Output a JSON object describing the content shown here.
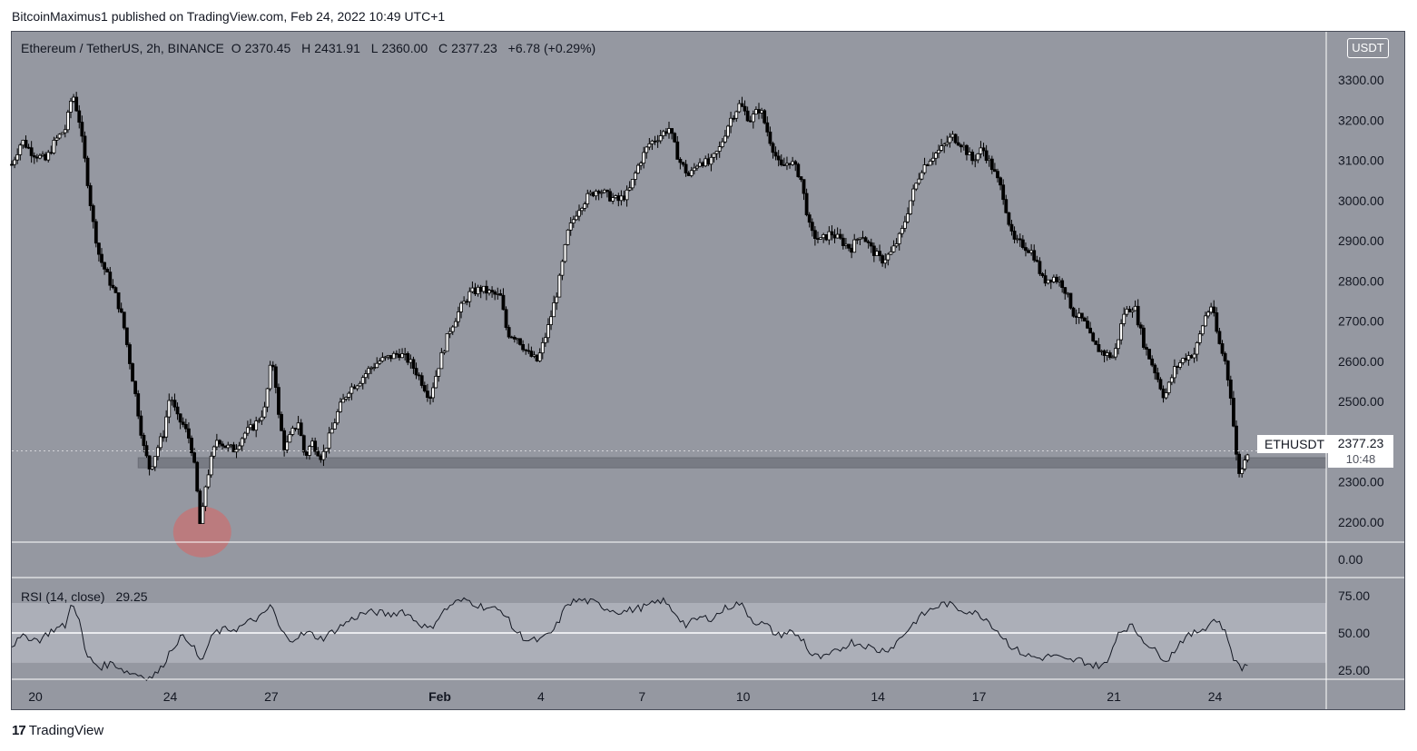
{
  "header": {
    "publisher_line": "BitcoinMaximus1 published on TradingView.com, Feb 24, 2022 10:49 UTC+1"
  },
  "symbol": {
    "name": "Ethereum / TetherUS, 2h, BINANCE",
    "open_label": "O",
    "open": "2370.45",
    "high_label": "H",
    "high": "2431.91",
    "low_label": "L",
    "low": "2360.00",
    "close_label": "C",
    "close": "2377.23",
    "change": "+6.78 (+0.29%)"
  },
  "unit_badge": "USDT",
  "last_price": {
    "ticker": "ETHUSDT",
    "price": "2377.23",
    "countdown": "10:48"
  },
  "rsi": {
    "label": "RSI (14, close)",
    "value": "29.25"
  },
  "footer": {
    "brand": "TradingView",
    "logo_glyph": "17"
  },
  "colors": {
    "background": "#9598a1",
    "candle": "#000000",
    "support_zone": "#6f727b",
    "highlight": "#d06b6b",
    "rsi_band": "#b2b5be",
    "rsi_line": "#131722"
  },
  "chart_data": [
    {
      "type": "candlestick",
      "symbol": "ETHUSDT",
      "ylim": [
        2150,
        3420
      ],
      "y_ticks": [
        2200,
        2300,
        2400,
        2500,
        2600,
        2700,
        2800,
        2900,
        3000,
        3100,
        3200,
        3300
      ],
      "y_tick_labels": [
        "2200.00",
        "2300.00",
        "2400.00",
        "2500.00",
        "2600.00",
        "2700.00",
        "2800.00",
        "2900.00",
        "3000.00",
        "3100.00",
        "3200.00",
        "3300.00"
      ],
      "extra_tick_label": "0.00",
      "x_tick_labels": [
        "20",
        "24",
        "27",
        "Feb",
        "4",
        "7",
        "10",
        "14",
        "17",
        "21",
        "24"
      ],
      "x_tick_days": [
        0,
        4,
        7,
        12,
        15,
        18,
        21,
        25,
        28,
        32,
        35
      ],
      "x_range_days": [
        -0.7,
        38.3
      ],
      "close_path": [
        [
          -0.7,
          3090
        ],
        [
          -0.4,
          3150
        ],
        [
          -0.1,
          3120
        ],
        [
          0.3,
          3100
        ],
        [
          0.6,
          3150
        ],
        [
          0.9,
          3180
        ],
        [
          1.1,
          3270
        ],
        [
          1.3,
          3200
        ],
        [
          1.5,
          3080
        ],
        [
          1.7,
          2950
        ],
        [
          1.9,
          2860
        ],
        [
          2.2,
          2800
        ],
        [
          2.4,
          2760
        ],
        [
          2.6,
          2700
        ],
        [
          2.8,
          2600
        ],
        [
          3.0,
          2500
        ],
        [
          3.2,
          2390
        ],
        [
          3.4,
          2330
        ],
        [
          3.6,
          2380
        ],
        [
          3.8,
          2420
        ],
        [
          4.0,
          2520
        ],
        [
          4.2,
          2460
        ],
        [
          4.4,
          2440
        ],
        [
          4.6,
          2400
        ],
        [
          4.75,
          2320
        ],
        [
          4.9,
          2180
        ],
        [
          5.05,
          2290
        ],
        [
          5.2,
          2350
        ],
        [
          5.4,
          2410
        ],
        [
          5.6,
          2390
        ],
        [
          5.9,
          2380
        ],
        [
          6.2,
          2420
        ],
        [
          6.5,
          2440
        ],
        [
          6.8,
          2480
        ],
        [
          7.0,
          2600
        ],
        [
          7.1,
          2580
        ],
        [
          7.2,
          2470
        ],
        [
          7.4,
          2380
        ],
        [
          7.6,
          2420
        ],
        [
          7.8,
          2450
        ],
        [
          8.0,
          2360
        ],
        [
          8.2,
          2400
        ],
        [
          8.5,
          2360
        ],
        [
          8.8,
          2430
        ],
        [
          9.0,
          2480
        ],
        [
          9.3,
          2530
        ],
        [
          9.6,
          2550
        ],
        [
          9.9,
          2580
        ],
        [
          10.2,
          2600
        ],
        [
          10.5,
          2610
        ],
        [
          10.8,
          2620
        ],
        [
          11.1,
          2600
        ],
        [
          11.4,
          2560
        ],
        [
          11.7,
          2510
        ],
        [
          12.0,
          2600
        ],
        [
          12.3,
          2680
        ],
        [
          12.6,
          2730
        ],
        [
          12.9,
          2770
        ],
        [
          13.2,
          2780
        ],
        [
          13.5,
          2770
        ],
        [
          13.8,
          2760
        ],
        [
          14.0,
          2670
        ],
        [
          14.3,
          2660
        ],
        [
          14.6,
          2620
        ],
        [
          14.9,
          2600
        ],
        [
          15.2,
          2680
        ],
        [
          15.5,
          2780
        ],
        [
          15.8,
          2920
        ],
        [
          16.1,
          2980
        ],
        [
          16.4,
          3010
        ],
        [
          16.7,
          3030
        ],
        [
          17.0,
          3010
        ],
        [
          17.3,
          3000
        ],
        [
          17.6,
          3020
        ],
        [
          17.9,
          3090
        ],
        [
          18.2,
          3140
        ],
        [
          18.5,
          3160
        ],
        [
          18.8,
          3180
        ],
        [
          19.1,
          3100
        ],
        [
          19.4,
          3060
        ],
        [
          19.7,
          3100
        ],
        [
          20.0,
          3090
        ],
        [
          20.3,
          3130
        ],
        [
          20.6,
          3200
        ],
        [
          20.9,
          3240
        ],
        [
          21.2,
          3200
        ],
        [
          21.5,
          3230
        ],
        [
          21.8,
          3150
        ],
        [
          22.1,
          3080
        ],
        [
          22.4,
          3100
        ],
        [
          22.7,
          3060
        ],
        [
          23.0,
          2920
        ],
        [
          23.3,
          2900
        ],
        [
          23.6,
          2920
        ],
        [
          23.9,
          2900
        ],
        [
          24.2,
          2880
        ],
        [
          24.5,
          2920
        ],
        [
          24.8,
          2880
        ],
        [
          25.1,
          2850
        ],
        [
          25.4,
          2870
        ],
        [
          25.7,
          2920
        ],
        [
          26.0,
          3010
        ],
        [
          26.3,
          3080
        ],
        [
          26.6,
          3110
        ],
        [
          26.9,
          3130
        ],
        [
          27.2,
          3160
        ],
        [
          27.5,
          3140
        ],
        [
          27.8,
          3100
        ],
        [
          28.1,
          3130
        ],
        [
          28.4,
          3080
        ],
        [
          28.7,
          3020
        ],
        [
          29.0,
          2900
        ],
        [
          29.3,
          2890
        ],
        [
          29.6,
          2870
        ],
        [
          29.9,
          2800
        ],
        [
          30.2,
          2810
        ],
        [
          30.5,
          2790
        ],
        [
          30.8,
          2720
        ],
        [
          31.1,
          2700
        ],
        [
          31.4,
          2640
        ],
        [
          31.7,
          2620
        ],
        [
          32.0,
          2610
        ],
        [
          32.3,
          2720
        ],
        [
          32.6,
          2740
        ],
        [
          32.9,
          2640
        ],
        [
          33.2,
          2580
        ],
        [
          33.5,
          2510
        ],
        [
          33.8,
          2580
        ],
        [
          34.1,
          2610
        ],
        [
          34.4,
          2620
        ],
        [
          34.7,
          2710
        ],
        [
          34.9,
          2740
        ],
        [
          35.1,
          2650
        ],
        [
          35.3,
          2600
        ],
        [
          35.5,
          2500
        ],
        [
          35.6,
          2380
        ],
        [
          35.75,
          2310
        ],
        [
          35.9,
          2370
        ],
        [
          36.0,
          2377
        ]
      ],
      "support_zone": {
        "low": 2335,
        "high": 2360,
        "from_day": 3.05
      },
      "highlight_low": {
        "day": 4.95,
        "price": 2180
      }
    },
    {
      "type": "line",
      "name": "RSI (14, close)",
      "ylim": [
        19,
        87
      ],
      "y_ticks": [
        25,
        50,
        75
      ],
      "y_tick_labels": [
        "25.00",
        "50.00",
        "75.00"
      ],
      "band": [
        30,
        70
      ],
      "midline": 50,
      "points": [
        [
          -0.7,
          42
        ],
        [
          -0.3,
          48
        ],
        [
          0.1,
          45
        ],
        [
          0.5,
          52
        ],
        [
          0.9,
          55
        ],
        [
          1.1,
          72
        ],
        [
          1.3,
          58
        ],
        [
          1.5,
          35
        ],
        [
          1.9,
          27
        ],
        [
          2.3,
          30
        ],
        [
          2.7,
          24
        ],
        [
          3.1,
          22
        ],
        [
          3.4,
          20
        ],
        [
          3.7,
          25
        ],
        [
          4.0,
          38
        ],
        [
          4.3,
          47
        ],
        [
          4.6,
          45
        ],
        [
          4.9,
          30
        ],
        [
          5.1,
          40
        ],
        [
          5.3,
          50
        ],
        [
          5.6,
          52
        ],
        [
          6.0,
          53
        ],
        [
          6.4,
          58
        ],
        [
          6.8,
          62
        ],
        [
          7.0,
          70
        ],
        [
          7.2,
          55
        ],
        [
          7.5,
          45
        ],
        [
          7.8,
          48
        ],
        [
          8.1,
          50
        ],
        [
          8.5,
          46
        ],
        [
          8.9,
          52
        ],
        [
          9.3,
          58
        ],
        [
          9.7,
          63
        ],
        [
          10.1,
          64
        ],
        [
          10.5,
          62
        ],
        [
          10.9,
          65
        ],
        [
          11.3,
          58
        ],
        [
          11.7,
          52
        ],
        [
          12.0,
          62
        ],
        [
          12.4,
          70
        ],
        [
          12.8,
          72
        ],
        [
          13.2,
          68
        ],
        [
          13.6,
          66
        ],
        [
          13.9,
          64
        ],
        [
          14.2,
          52
        ],
        [
          14.6,
          45
        ],
        [
          15.0,
          45
        ],
        [
          15.4,
          52
        ],
        [
          15.8,
          70
        ],
        [
          16.2,
          72
        ],
        [
          16.6,
          70
        ],
        [
          17.0,
          66
        ],
        [
          17.4,
          64
        ],
        [
          17.8,
          66
        ],
        [
          18.2,
          68
        ],
        [
          18.6,
          72
        ],
        [
          19.0,
          63
        ],
        [
          19.3,
          55
        ],
        [
          19.7,
          60
        ],
        [
          20.1,
          60
        ],
        [
          20.5,
          67
        ],
        [
          20.9,
          70
        ],
        [
          21.3,
          58
        ],
        [
          21.7,
          55
        ],
        [
          22.0,
          48
        ],
        [
          22.4,
          51
        ],
        [
          22.8,
          45
        ],
        [
          23.0,
          35
        ],
        [
          23.4,
          33
        ],
        [
          23.8,
          38
        ],
        [
          24.2,
          44
        ],
        [
          24.6,
          42
        ],
        [
          25.0,
          38
        ],
        [
          25.4,
          40
        ],
        [
          25.8,
          50
        ],
        [
          26.2,
          60
        ],
        [
          26.6,
          66
        ],
        [
          27.0,
          70
        ],
        [
          27.4,
          66
        ],
        [
          27.8,
          64
        ],
        [
          28.2,
          60
        ],
        [
          28.6,
          50
        ],
        [
          29.0,
          40
        ],
        [
          29.4,
          35
        ],
        [
          29.8,
          33
        ],
        [
          30.2,
          35
        ],
        [
          30.6,
          31
        ],
        [
          31.0,
          32
        ],
        [
          31.4,
          28
        ],
        [
          31.8,
          29
        ],
        [
          32.1,
          50
        ],
        [
          32.5,
          55
        ],
        [
          32.9,
          45
        ],
        [
          33.3,
          36
        ],
        [
          33.6,
          32
        ],
        [
          34.0,
          45
        ],
        [
          34.4,
          50
        ],
        [
          34.8,
          55
        ],
        [
          35.0,
          60
        ],
        [
          35.2,
          55
        ],
        [
          35.4,
          45
        ],
        [
          35.6,
          30
        ],
        [
          35.8,
          27
        ],
        [
          36.0,
          29
        ]
      ]
    }
  ]
}
